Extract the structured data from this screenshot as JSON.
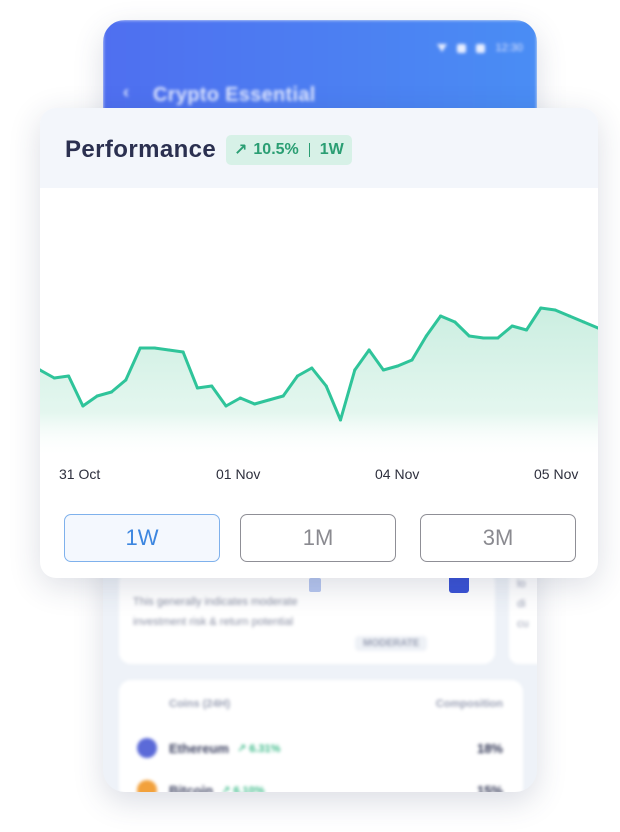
{
  "phone": {
    "status_time": "12:30",
    "back_icon": "back-arrow-icon",
    "title": "Crypto Essential",
    "risk": {
      "description": "This generally indicates moderate investment risk & return potential",
      "level": "MODERATE"
    },
    "side_card_lines": [
      "lo",
      "di",
      "cu"
    ],
    "coins": {
      "col_name": "Coins (24H)",
      "col_composition": "Composition",
      "rows": [
        {
          "name": "Ethereum",
          "change": "↗ 6.31%",
          "composition": "18%",
          "color": "#5b6ad8"
        },
        {
          "name": "Bitcoin",
          "change": "↗ 6.10%",
          "composition": "15%",
          "color": "#f2a13c"
        }
      ]
    }
  },
  "performance": {
    "title": "Performance",
    "badge_arrow": "↗",
    "badge_change": "10.5%",
    "badge_period": "1W",
    "x_labels": [
      "31 Oct",
      "01 Nov",
      "04 Nov",
      "05 Nov"
    ],
    "range_buttons": [
      "1W",
      "1M",
      "3M"
    ],
    "active_range": "1W",
    "colors": {
      "line": "#2fc49a",
      "fill": "#d3f1e5",
      "badge_bg": "#d7f1e7",
      "badge_text": "#2a9e73"
    }
  },
  "chart_data": {
    "type": "area",
    "title": "",
    "xlabel": "",
    "ylabel": "",
    "ylim": [
      0,
      100
    ],
    "y_axis_shown": false,
    "grid": false,
    "x_ticks": [
      "31 Oct",
      "01 Nov",
      "04 Nov",
      "05 Nov"
    ],
    "series": [
      {
        "values": [
          39,
          35,
          36,
          21,
          26,
          28,
          34,
          50,
          50,
          49,
          48,
          30,
          31,
          21,
          25,
          22,
          24,
          26,
          36,
          40,
          31,
          14,
          39,
          49,
          39,
          41,
          44,
          56,
          66,
          63,
          56,
          55,
          55,
          61,
          59,
          70,
          69,
          66,
          63,
          60
        ]
      }
    ]
  }
}
